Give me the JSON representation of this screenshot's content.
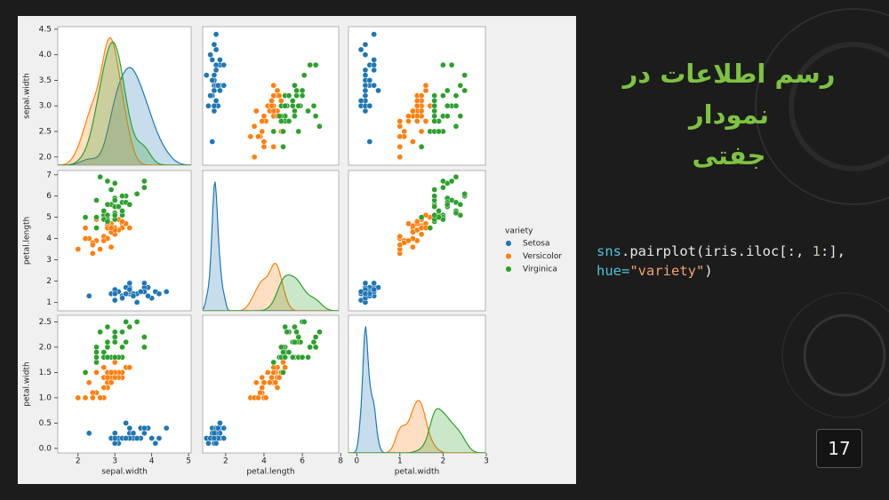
{
  "slide": {
    "title_lines": [
      "رسم اطلاعات در نمودار",
      "جفتی"
    ],
    "code_lines": [
      [
        {
          "text": "sns",
          "color": "#4fc1d6"
        },
        {
          "text": ".pairplot(iris.iloc[:, ",
          "color": "#e8e8e8"
        },
        {
          "text": "1",
          "color": "#b5cea8"
        },
        {
          "text": ":],",
          "color": "#e8e8e8"
        }
      ],
      [
        {
          "text": "hue=",
          "color": "#4fc1d6"
        },
        {
          "text": "\"variety\"",
          "color": "#f0a070"
        },
        {
          "text": ")",
          "color": "#e8e8e8"
        }
      ]
    ],
    "page_number": "17"
  },
  "chart_data": {
    "type": "pairplot",
    "legend_title": "variety",
    "legend": "right",
    "variables": [
      {
        "name": "sepal.width",
        "xlim": [
          1.45,
          5.07
        ],
        "xticks": [
          2,
          3,
          4,
          5
        ],
        "ylim": [
          1.84,
          4.55
        ],
        "yticks": [
          {
            "value": 2,
            "label": "2.0"
          },
          {
            "value": 2.5,
            "label": "2.5"
          },
          {
            "value": 3,
            "label": "3.0"
          },
          {
            "value": 3.5,
            "label": "3.5"
          },
          {
            "value": 4,
            "label": "4.0"
          },
          {
            "value": 4.5,
            "label": "4.5"
          }
        ]
      },
      {
        "name": "petal.length",
        "xlim": [
          0.8,
          7.9
        ],
        "xticks": [
          2,
          4,
          6,
          8
        ],
        "ylim": [
          0.6,
          7.2
        ],
        "yticks": [
          1,
          2,
          3,
          4,
          5,
          6,
          7
        ]
      },
      {
        "name": "petal.width",
        "xlim": [
          -0.19,
          2.98
        ],
        "xticks": [
          0,
          1,
          2,
          3
        ],
        "ylim": [
          -0.09,
          2.63
        ],
        "yticks": [
          {
            "value": 0,
            "label": "0.0"
          },
          {
            "value": 0.5,
            "label": "0.5"
          },
          {
            "value": 1,
            "label": "1.0"
          },
          {
            "value": 1.5,
            "label": "1.5"
          },
          {
            "value": 2,
            "label": "2.0"
          },
          {
            "value": 2.5,
            "label": "2.5"
          }
        ]
      }
    ],
    "series": [
      {
        "name": "Setosa",
        "color": "#1f77b4",
        "values": [
          [
            3.5,
            3.0,
            3.2,
            3.1,
            3.6,
            3.9,
            3.4,
            3.4,
            2.9,
            3.1,
            3.7,
            3.4,
            3.0,
            3.0,
            4.0,
            4.4,
            3.9,
            3.5,
            3.8,
            3.8,
            3.4,
            3.7,
            3.6,
            3.3,
            3.4,
            3.0,
            3.4,
            4.1,
            4.2,
            2.3,
            3.2,
            3.5,
            3.8,
            3.0,
            3.3
          ],
          [
            1.4,
            1.4,
            1.3,
            1.5,
            1.4,
            1.7,
            1.4,
            1.5,
            1.4,
            1.5,
            1.5,
            1.6,
            1.4,
            1.1,
            1.2,
            1.5,
            1.3,
            1.4,
            1.7,
            1.5,
            1.7,
            1.5,
            1.0,
            1.7,
            1.9,
            1.6,
            1.6,
            1.5,
            1.4,
            1.3,
            1.2,
            1.3,
            1.9,
            1.4,
            1.4
          ],
          [
            0.2,
            0.2,
            0.2,
            0.2,
            0.2,
            0.4,
            0.3,
            0.2,
            0.2,
            0.1,
            0.2,
            0.2,
            0.1,
            0.1,
            0.2,
            0.4,
            0.4,
            0.3,
            0.3,
            0.3,
            0.2,
            0.4,
            0.2,
            0.5,
            0.2,
            0.2,
            0.4,
            0.1,
            0.2,
            0.3,
            0.2,
            0.3,
            0.4,
            0.3,
            0.2
          ]
        ]
      },
      {
        "name": "Versicolor",
        "color": "#ff7f0e",
        "values": [
          [
            3.2,
            3.2,
            3.1,
            2.3,
            2.8,
            2.8,
            3.3,
            2.4,
            2.9,
            2.7,
            2.0,
            3.0,
            2.2,
            2.9,
            2.9,
            3.1,
            3.0,
            2.7,
            2.2,
            2.5,
            3.2,
            2.8,
            2.5,
            2.8,
            2.9,
            3.0,
            2.8,
            3.0,
            2.9,
            2.6,
            2.4,
            2.4,
            2.7,
            2.7,
            3.4
          ],
          [
            4.7,
            4.5,
            4.9,
            4.0,
            4.6,
            4.5,
            4.7,
            3.3,
            4.6,
            3.9,
            3.5,
            4.2,
            4.0,
            4.7,
            3.6,
            4.4,
            4.5,
            4.1,
            4.5,
            3.9,
            4.8,
            4.0,
            4.9,
            4.7,
            4.3,
            4.4,
            4.8,
            5.0,
            4.5,
            3.5,
            3.8,
            3.7,
            3.9,
            5.1,
            4.5
          ],
          [
            1.4,
            1.5,
            1.5,
            1.3,
            1.5,
            1.3,
            1.6,
            1.0,
            1.3,
            1.4,
            1.0,
            1.5,
            1.0,
            1.4,
            1.3,
            1.4,
            1.5,
            1.0,
            1.5,
            1.1,
            1.8,
            1.3,
            1.5,
            1.2,
            1.3,
            1.4,
            1.4,
            1.7,
            1.5,
            1.0,
            1.1,
            1.0,
            1.2,
            1.6,
            1.6
          ]
        ]
      },
      {
        "name": "Virginica",
        "color": "#2ca02c",
        "values": [
          [
            3.3,
            2.7,
            3.0,
            2.9,
            3.0,
            3.0,
            2.5,
            2.9,
            2.5,
            3.6,
            3.2,
            2.7,
            3.0,
            2.5,
            2.8,
            3.2,
            3.0,
            3.8,
            2.6,
            2.2,
            3.2,
            2.8,
            2.8,
            2.7,
            3.3,
            3.2,
            2.8,
            3.0,
            2.8,
            3.8,
            3.4,
            3.1,
            3.0,
            2.5,
            3.0
          ],
          [
            6.0,
            5.1,
            5.9,
            5.6,
            5.8,
            6.6,
            4.5,
            6.3,
            5.8,
            6.1,
            5.1,
            5.3,
            5.5,
            5.0,
            5.1,
            5.3,
            5.5,
            6.7,
            6.9,
            5.0,
            5.7,
            4.9,
            6.7,
            4.9,
            5.7,
            6.0,
            4.8,
            4.9,
            5.6,
            6.4,
            5.6,
            5.5,
            5.2,
            5.0,
            5.1
          ],
          [
            2.5,
            1.9,
            2.1,
            1.8,
            2.2,
            2.1,
            1.7,
            1.8,
            1.8,
            2.5,
            2.0,
            1.9,
            2.1,
            2.0,
            2.4,
            2.3,
            1.8,
            2.2,
            2.3,
            1.5,
            2.3,
            2.0,
            2.0,
            1.8,
            2.1,
            1.8,
            1.8,
            1.8,
            2.1,
            2.0,
            2.4,
            1.8,
            2.3,
            1.9,
            1.8
          ]
        ]
      }
    ]
  }
}
